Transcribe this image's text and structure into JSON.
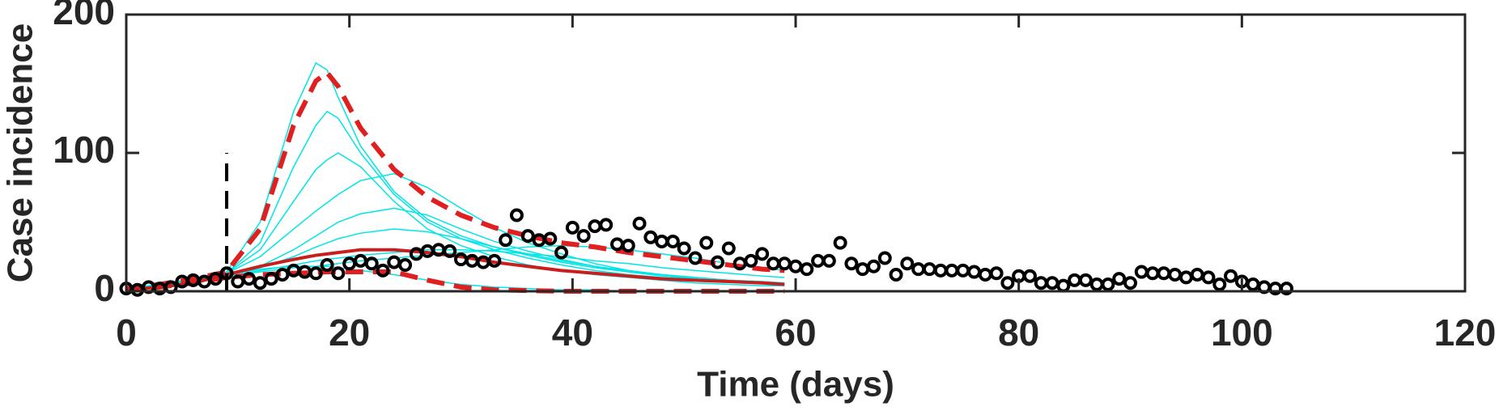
{
  "chart_data": {
    "type": "line",
    "xlabel": "Time (days)",
    "ylabel": "Case incidence",
    "xlim": [
      0,
      120
    ],
    "xticks": [
      0,
      20,
      40,
      60,
      80,
      100,
      120
    ],
    "ylim": [
      0,
      200
    ],
    "yticks": [
      0,
      100,
      200
    ],
    "grid": false,
    "observed": {
      "color": "#000000",
      "x": [
        0,
        1,
        2,
        3,
        4,
        5,
        6,
        7,
        8,
        9,
        10,
        11,
        12,
        13,
        14,
        15,
        16,
        17,
        18,
        19,
        20,
        21,
        22,
        23,
        24,
        25,
        26,
        27,
        28,
        29,
        30,
        31,
        32,
        33,
        34,
        35,
        36,
        37,
        38,
        39,
        40,
        41,
        42,
        43,
        44,
        45,
        46,
        47,
        48,
        49,
        50,
        51,
        52,
        53,
        54,
        55,
        56,
        57,
        58,
        59,
        60,
        61,
        62,
        63,
        64,
        65,
        66,
        67,
        68,
        69,
        70,
        71,
        72,
        73,
        74,
        75,
        76,
        77,
        78,
        79,
        80,
        81,
        82,
        83,
        84,
        85,
        86,
        87,
        88,
        89,
        90,
        91,
        92,
        93,
        94,
        95,
        96,
        97,
        98,
        99,
        100,
        101,
        102,
        103,
        104
      ],
      "values": [
        2,
        1,
        3,
        2,
        3,
        7,
        8,
        7,
        9,
        13,
        7,
        9,
        6,
        9,
        12,
        15,
        14,
        13,
        19,
        13,
        20,
        22,
        20,
        15,
        21,
        19,
        27,
        29,
        30,
        29,
        23,
        22,
        21,
        22,
        37,
        55,
        40,
        37,
        38,
        28,
        46,
        40,
        47,
        48,
        34,
        33,
        49,
        39,
        36,
        36,
        31,
        24,
        35,
        21,
        31,
        20,
        22,
        27,
        20,
        20,
        18,
        16,
        22,
        22,
        35,
        20,
        16,
        18,
        24,
        12,
        20,
        16,
        16,
        15,
        15,
        15,
        14,
        12,
        13,
        6,
        11,
        11,
        6,
        6,
        4,
        8,
        8,
        5,
        5,
        9,
        6,
        14,
        13,
        13,
        12,
        10,
        12,
        10,
        5,
        11,
        7,
        5,
        3,
        2,
        2
      ]
    },
    "curve_x": [
      0,
      3,
      6,
      9,
      12,
      15,
      17,
      18,
      19,
      21,
      24,
      27,
      30,
      33,
      36,
      39,
      42,
      45,
      48,
      51,
      54,
      57,
      59
    ],
    "ensemble": {
      "color": "#00e5e5",
      "curves": [
        [
          2,
          5,
          9,
          14,
          50,
          130,
          165,
          160,
          140,
          105,
          72,
          52,
          40,
          32,
          26,
          21,
          17,
          14,
          12,
          10,
          8,
          7,
          6
        ],
        [
          2,
          5,
          9,
          13,
          35,
          90,
          120,
          130,
          125,
          100,
          70,
          50,
          38,
          30,
          24,
          19,
          15,
          12,
          10,
          8,
          7,
          6,
          5
        ],
        [
          2,
          5,
          9,
          13,
          30,
          65,
          88,
          95,
          100,
          90,
          65,
          45,
          33,
          25,
          19,
          15,
          12,
          10,
          8,
          6,
          5,
          4,
          4
        ],
        [
          2,
          5,
          9,
          13,
          25,
          45,
          58,
          64,
          70,
          80,
          85,
          75,
          60,
          46,
          35,
          27,
          20,
          15,
          12,
          9,
          7,
          6,
          5
        ],
        [
          2,
          5,
          9,
          12,
          18,
          30,
          40,
          45,
          50,
          56,
          60,
          55,
          45,
          36,
          29,
          23,
          18,
          14,
          11,
          9,
          7,
          6,
          5
        ],
        [
          1,
          4,
          8,
          12,
          17,
          25,
          32,
          35,
          38,
          42,
          45,
          43,
          38,
          32,
          27,
          22,
          18,
          15,
          12,
          10,
          8,
          7,
          6
        ],
        [
          1,
          4,
          7,
          11,
          15,
          19,
          22,
          23,
          24,
          26,
          28,
          30,
          30,
          29,
          27,
          25,
          22,
          20,
          17,
          15,
          13,
          11,
          10
        ],
        [
          1,
          4,
          8,
          12,
          16,
          18,
          18,
          18,
          17,
          15,
          12,
          8,
          5,
          3,
          2,
          1,
          1,
          0,
          0,
          0,
          0,
          0,
          0
        ],
        [
          1,
          4,
          7,
          11,
          14,
          17,
          18,
          19,
          20,
          22,
          24,
          26,
          28,
          30,
          32,
          33,
          32,
          30,
          27,
          24,
          20,
          17,
          15
        ]
      ]
    },
    "upper": {
      "color": "#e02020",
      "dashed": true,
      "values": [
        2,
        5,
        9,
        14,
        45,
        120,
        152,
        158,
        148,
        118,
        88,
        68,
        55,
        46,
        40,
        35,
        32,
        28,
        25,
        22,
        19,
        16,
        15
      ]
    },
    "median": {
      "color": "#c81e1e",
      "dashed": false,
      "values": [
        1,
        3,
        6,
        12,
        18,
        23,
        26,
        27,
        28,
        30,
        30,
        28,
        25,
        21,
        18,
        15,
        13,
        11,
        9,
        8,
        7,
        6,
        5
      ]
    },
    "lower": {
      "color": "#e02020",
      "dashed": true,
      "values": [
        1,
        3,
        6,
        10,
        12,
        13,
        13.5,
        14,
        14,
        14,
        14,
        8,
        3,
        1,
        0.5,
        0,
        0,
        0,
        0,
        0,
        0,
        0,
        0
      ]
    },
    "marker_line": {
      "x": 9,
      "y": [
        0,
        100
      ],
      "color": "#000000"
    }
  }
}
